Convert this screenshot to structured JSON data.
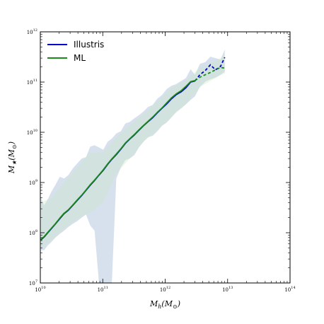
{
  "chart_data": {
    "type": "line",
    "title": "",
    "xlabel": "M_h(M_⊙)",
    "ylabel": "M_★(M_⊙)",
    "xlabel_parts": {
      "main": "M",
      "sub": "h",
      "open": "(M",
      "sun_sub": "⊙",
      "close": ")"
    },
    "ylabel_parts": {
      "main": "M",
      "sub": "★",
      "open": "(M",
      "sun_sub": "⊙",
      "close": ")"
    },
    "xscale": "log",
    "yscale": "log",
    "xlim": [
      10000000000.0,
      100000000000000.0
    ],
    "ylim": [
      10000000.0,
      1000000000000.0
    ],
    "grid": false,
    "legend_position": "top-left",
    "x_ticks": [
      {
        "value": 10000000000.0,
        "base": "10",
        "exp": "10"
      },
      {
        "value": 100000000000.0,
        "base": "10",
        "exp": "11"
      },
      {
        "value": 1000000000000.0,
        "base": "10",
        "exp": "12"
      },
      {
        "value": 10000000000000.0,
        "base": "10",
        "exp": "13"
      },
      {
        "value": 100000000000000.0,
        "base": "10",
        "exp": "14"
      }
    ],
    "y_ticks": [
      {
        "value": 10000000.0,
        "base": "10",
        "exp": "7"
      },
      {
        "value": 100000000.0,
        "base": "10",
        "exp": "8"
      },
      {
        "value": 1000000000.0,
        "base": "10",
        "exp": "9"
      },
      {
        "value": 10000000000.0,
        "base": "10",
        "exp": "10"
      },
      {
        "value": 100000000000.0,
        "base": "10",
        "exp": "11"
      },
      {
        "value": 1000000000000.0,
        "base": "10",
        "exp": "12"
      }
    ],
    "series": [
      {
        "name": "Illustris",
        "color": "#0000cc",
        "x": [
          10200000000.0,
          11500000000.0,
          13000000000.0,
          15000000000.0,
          17500000000.0,
          20500000000.0,
          24000000000.0,
          28000000000.0,
          33000000000.0,
          39000000000.0,
          46000000000.0,
          54000000000.0,
          63000000000.0,
          74000000000.0,
          87000000000.0,
          102000000000.0,
          120000000000.0,
          140000000000.0,
          165000000000.0,
          195000000000.0,
          230000000000.0,
          270000000000.0,
          320000000000.0,
          380000000000.0,
          450000000000.0,
          530000000000.0,
          630000000000.0,
          750000000000.0,
          890000000000.0,
          1050000000000.0,
          1250000000000.0,
          1500000000000.0,
          1800000000000.0,
          2150000000000.0,
          2550000000000.0,
          3000000000000.0
        ],
        "y": [
          72000000.0,
          82000000.0,
          98000000.0,
          120000000.0,
          150000000.0,
          190000000.0,
          240000000.0,
          280000000.0,
          350000000.0,
          440000000.0,
          550000000.0,
          700000000.0,
          880000000.0,
          1100000000.0,
          1400000000.0,
          1750000000.0,
          2300000000.0,
          2900000000.0,
          3600000000.0,
          4600000000.0,
          6000000000.0,
          7300000000.0,
          8800000000.0,
          11000000000.0,
          13500000000.0,
          16200000000.0,
          19500000000.0,
          24500000000.0,
          30000000000.0,
          36500000000.0,
          46000000000.0,
          56000000000.0,
          64000000000.0,
          77000000000.0,
          100000000000.0,
          105000000000.0
        ],
        "dashed_x": [
          3000000000000.0,
          3600000000000.0,
          4400000000000.0,
          5300000000000.0,
          6400000000000.0,
          7700000000000.0,
          9000000000000.0
        ],
        "dashed_y": [
          105000000000.0,
          140000000000.0,
          170000000000.0,
          220000000000.0,
          175000000000.0,
          205000000000.0,
          310000000000.0
        ]
      },
      {
        "name": "ML",
        "color": "#1a8a1a",
        "x": [
          10200000000.0,
          11500000000.0,
          13000000000.0,
          15000000000.0,
          17500000000.0,
          20500000000.0,
          24000000000.0,
          28000000000.0,
          33000000000.0,
          39000000000.0,
          46000000000.0,
          54000000000.0,
          63000000000.0,
          74000000000.0,
          87000000000.0,
          102000000000.0,
          120000000000.0,
          140000000000.0,
          165000000000.0,
          195000000000.0,
          230000000000.0,
          270000000000.0,
          320000000000.0,
          380000000000.0,
          450000000000.0,
          530000000000.0,
          630000000000.0,
          750000000000.0,
          890000000000.0,
          1050000000000.0,
          1250000000000.0,
          1500000000000.0,
          1800000000000.0,
          2150000000000.0,
          2550000000000.0,
          3000000000000.0
        ],
        "y": [
          74000000.0,
          84000000.0,
          100000000.0,
          122000000.0,
          152000000.0,
          195000000.0,
          245000000.0,
          285000000.0,
          355000000.0,
          450000000.0,
          560000000.0,
          710000000.0,
          900000000.0,
          1120000000.0,
          1420000000.0,
          1800000000.0,
          2350000000.0,
          2950000000.0,
          3700000000.0,
          4700000000.0,
          6100000000.0,
          7400000000.0,
          9000000000.0,
          11200000000.0,
          13700000000.0,
          16500000000.0,
          20000000000.0,
          25000000000.0,
          30500000000.0,
          38000000000.0,
          48000000000.0,
          58000000000.0,
          67000000000.0,
          82000000000.0,
          102000000000.0,
          107000000000.0
        ],
        "dashed_x": [
          3000000000000.0,
          3600000000000.0,
          4400000000000.0,
          5300000000000.0,
          6400000000000.0,
          7700000000000.0,
          9000000000000.0
        ],
        "dashed_y": [
          107000000000.0,
          125000000000.0,
          140000000000.0,
          155000000000.0,
          175000000000.0,
          195000000000.0,
          190000000000.0
        ]
      }
    ],
    "bands": [
      {
        "color": "#b0c4de",
        "opacity": 0.5,
        "x": [
          10200000000.0,
          11500000000.0,
          13000000000.0,
          15000000000.0,
          17500000000.0,
          20500000000.0,
          24000000000.0,
          28000000000.0,
          33000000000.0,
          39000000000.0,
          46000000000.0,
          54000000000.0,
          63000000000.0,
          74000000000.0,
          87000000000.0,
          102000000000.0,
          120000000000.0,
          140000000000.0,
          165000000000.0,
          195000000000.0,
          230000000000.0,
          270000000000.0,
          320000000000.0,
          380000000000.0,
          450000000000.0,
          530000000000.0,
          630000000000.0,
          750000000000.0,
          890000000000.0,
          1050000000000.0,
          1250000000000.0,
          1500000000000.0,
          1800000000000.0,
          2150000000000.0,
          2550000000000.0,
          3000000000000.0,
          3600000000000.0,
          4400000000000.0,
          5300000000000.0,
          6400000000000.0,
          7700000000000.0,
          9000000000000.0
        ],
        "upper": [
          500000000.0,
          350000000.0,
          450000000.0,
          650000000.0,
          900000000.0,
          1300000000.0,
          1200000000.0,
          1400000000.0,
          1900000000.0,
          2400000000.0,
          3000000000.0,
          3200000000.0,
          5200000000.0,
          5500000000.0,
          5000000000.0,
          4500000000.0,
          6500000000.0,
          7500000000.0,
          9500000000.0,
          10500000000.0,
          15000000000.0,
          16000000000.0,
          19000000000.0,
          22000000000.0,
          26000000000.0,
          32000000000.0,
          35000000000.0,
          47000000000.0,
          55000000000.0,
          72000000000.0,
          84000000000.0,
          91000000000.0,
          105000000000.0,
          120000000000.0,
          180000000000.0,
          140000000000.0,
          230000000000.0,
          250000000000.0,
          320000000000.0,
          300000000000.0,
          280000000000.0,
          440000000000.0
        ],
        "lower": [
          45000000.0,
          45000000.0,
          55000000.0,
          65000000.0,
          80000000.0,
          95000000.0,
          110000000.0,
          130000000.0,
          150000000.0,
          170000000.0,
          200000000.0,
          230000000.0,
          140000000.0,
          110000000.0,
          10000000.0,
          10000000.0,
          10000000.0,
          10000000.0,
          1200000000.0,
          2000000000.0,
          2800000000.0,
          3000000000.0,
          3500000000.0,
          5000000000.0,
          6500000000.0,
          8000000000.0,
          8500000000.0,
          10500000000.0,
          13500000000.0,
          15500000000.0,
          19500000000.0,
          25500000000.0,
          30000000000.0,
          36000000000.0,
          44000000000.0,
          52000000000.0,
          80000000000.0,
          102000000000.0,
          114000000000.0,
          123000000000.0,
          140000000000.0,
          160000000000.0
        ]
      },
      {
        "color": "#c8e6c0",
        "opacity": 0.35,
        "x": [
          10200000000.0,
          15000000000.0,
          24000000000.0,
          39000000000.0,
          63000000000.0,
          102000000000.0,
          165000000000.0,
          270000000000.0,
          450000000000.0,
          750000000000.0,
          1250000000000.0,
          2150000000000.0,
          3600000000000.0,
          6400000000000.0,
          9000000000000.0
        ],
        "upper": [
          400000000.0,
          500000000.0,
          1000000000.0,
          2000000000.0,
          4000000000.0,
          4000000000.0,
          8000000000.0,
          14000000000.0,
          23000000000.0,
          42000000000.0,
          76000000000.0,
          110000000000.0,
          190000000000.0,
          260000000000.0,
          340000000000.0
        ],
        "lower": [
          50000000.0,
          70000000.0,
          120000000.0,
          190000000.0,
          250000000.0,
          400000000.0,
          1500000000.0,
          3000000000.0,
          6500000000.0,
          11000000000.0,
          20000000000.0,
          36000000000.0,
          80000000000.0,
          120000000000.0,
          150000000000.0
        ]
      }
    ],
    "legend": [
      {
        "label": "Illustris",
        "color": "#0000cc"
      },
      {
        "label": "ML",
        "color": "#1a8a1a"
      }
    ]
  }
}
